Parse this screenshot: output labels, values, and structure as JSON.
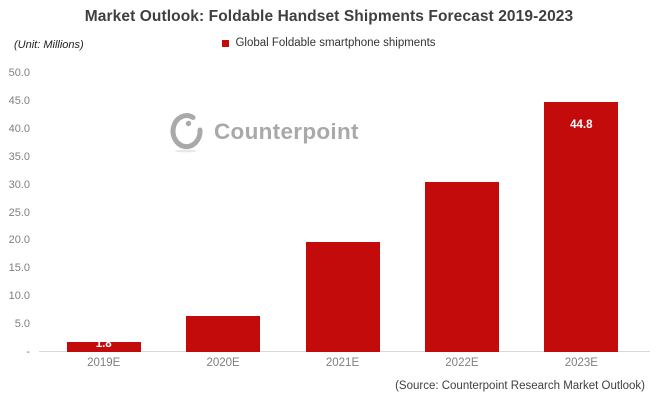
{
  "header": {
    "title": "Market Outlook: Foldable Handset Shipments Forecast 2019-2023",
    "unit_label": "(Unit: Millions)"
  },
  "legend": {
    "label": "Global Foldable smartphone shipments"
  },
  "watermark": {
    "text": "Counterpoint"
  },
  "footer": {
    "source": "(Source: Counterpoint Research Market Outlook)"
  },
  "colors": {
    "bar": "#c30b0b",
    "data_label": "#ffffff",
    "title_text": "#3f3f3f",
    "tick_text": "#7f7f7f",
    "axis_line": "#d9d9d9",
    "watermark": "#a9a9a9"
  },
  "chart_data": {
    "type": "bar",
    "title": "Market Outlook: Foldable Handset Shipments Forecast 2019-2023",
    "series_name": "Global Foldable smartphone shipments",
    "categories": [
      "2019E",
      "2020E",
      "2021E",
      "2022E",
      "2023E"
    ],
    "values": [
      1.8,
      6.4,
      19.8,
      30.5,
      44.8
    ],
    "unit": "Millions",
    "xlabel": "",
    "ylabel": "(Unit: Millions)",
    "ylim": [
      0,
      50
    ],
    "ytick_step": 5,
    "ytick_labels": [
      "50.0",
      "45.0",
      "40.0",
      "35.0",
      "30.0",
      "25.0",
      "20.0",
      "15.0",
      "10.0",
      "5.0",
      "-"
    ],
    "data_labels": {
      "2019E": "1.8",
      "2023E": "44.8"
    },
    "grid": false,
    "legend_position": "top-center"
  }
}
